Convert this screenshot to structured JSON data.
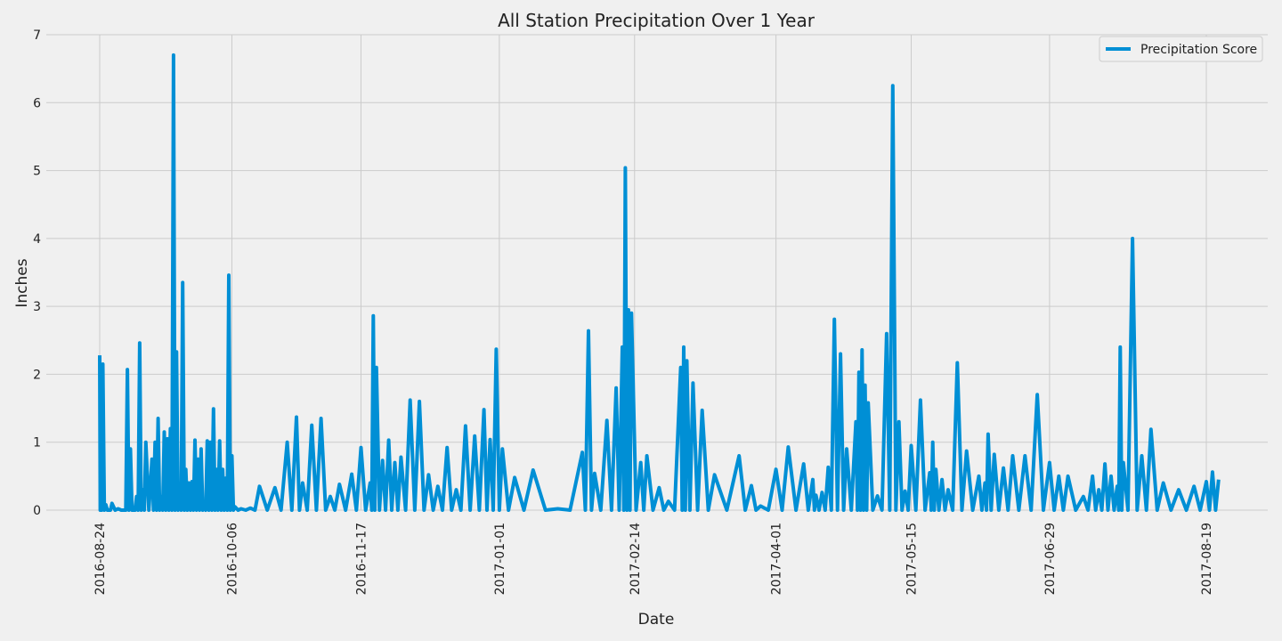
{
  "chart_data": {
    "type": "line",
    "title": "All Station Precipitation Over 1 Year",
    "xlabel": "Date",
    "ylabel": "Inches",
    "x_range": [
      "2016-08-24",
      "2017-08-23"
    ],
    "ylim": [
      0,
      7
    ],
    "grid": true,
    "legend_position": "top-right",
    "x_ticks": [
      "2016-08-24",
      "2016-10-06",
      "2016-11-17",
      "2017-01-01",
      "2017-02-14",
      "2017-04-01",
      "2017-05-15",
      "2017-06-29",
      "2017-08-19"
    ],
    "y_ticks": [
      "0",
      "1",
      "2",
      "3",
      "4",
      "5",
      "6",
      "7"
    ],
    "series": [
      {
        "name": "Precipitation Score",
        "color": "#008fd5",
        "x": [
          "2016-08-24",
          "2016-08-24",
          "2016-08-25",
          "2016-08-26",
          "2016-08-27",
          "2016-08-28",
          "2016-08-30",
          "2016-09-01",
          "2016-09-02",
          "2016-09-03",
          "2016-09-04",
          "2016-09-05",
          "2016-09-06",
          "2016-09-07",
          "2016-09-08",
          "2016-09-10",
          "2016-09-11",
          "2016-09-12",
          "2016-09-13",
          "2016-09-14",
          "2016-09-15",
          "2016-09-16",
          "2016-09-17",
          "2016-09-18",
          "2016-09-19",
          "2016-09-20",
          "2016-09-21",
          "2016-09-22",
          "2016-09-23",
          "2016-09-24",
          "2016-09-25",
          "2016-09-26",
          "2016-09-27",
          "2016-09-28",
          "2016-09-29",
          "2016-09-30",
          "2016-10-01",
          "2016-10-02",
          "2016-10-03",
          "2016-10-04",
          "2016-10-05",
          "2016-10-06",
          "2016-10-07",
          "2016-10-09",
          "2016-10-12",
          "2016-10-15",
          "2016-10-20",
          "2016-10-24",
          "2016-10-27",
          "2016-10-29",
          "2016-11-01",
          "2016-11-04",
          "2016-11-07",
          "2016-11-10",
          "2016-11-14",
          "2016-11-17",
          "2016-11-20",
          "2016-11-21",
          "2016-11-22",
          "2016-11-24",
          "2016-11-26",
          "2016-11-28",
          "2016-11-30",
          "2016-12-03",
          "2016-12-06",
          "2016-12-09",
          "2016-12-12",
          "2016-12-15",
          "2016-12-18",
          "2016-12-21",
          "2016-12-24",
          "2016-12-27",
          "2016-12-29",
          "2016-12-31",
          "2017-01-02",
          "2017-01-06",
          "2017-01-12",
          "2017-01-20",
          "2017-01-28",
          "2017-01-30",
          "2017-02-01",
          "2017-02-05",
          "2017-02-08",
          "2017-02-10",
          "2017-02-11",
          "2017-02-12",
          "2017-02-13",
          "2017-02-16",
          "2017-02-18",
          "2017-02-22",
          "2017-02-25",
          "2017-03-01",
          "2017-03-02",
          "2017-03-03",
          "2017-03-05",
          "2017-03-08",
          "2017-03-12",
          "2017-03-20",
          "2017-03-24",
          "2017-03-27",
          "2017-04-01",
          "2017-04-05",
          "2017-04-10",
          "2017-04-13",
          "2017-04-14",
          "2017-04-16",
          "2017-04-18",
          "2017-04-20",
          "2017-04-22",
          "2017-04-24",
          "2017-04-27",
          "2017-04-28",
          "2017-04-29",
          "2017-04-30",
          "2017-05-01",
          "2017-05-04",
          "2017-05-07",
          "2017-05-09",
          "2017-05-11",
          "2017-05-13",
          "2017-05-15",
          "2017-05-18",
          "2017-05-21",
          "2017-05-22",
          "2017-05-23",
          "2017-05-25",
          "2017-05-27",
          "2017-05-30",
          "2017-06-02",
          "2017-06-06",
          "2017-06-08",
          "2017-06-09",
          "2017-06-11",
          "2017-06-14",
          "2017-06-17",
          "2017-06-21",
          "2017-06-25",
          "2017-06-29",
          "2017-07-02",
          "2017-07-05",
          "2017-07-10",
          "2017-07-13",
          "2017-07-15",
          "2017-07-17",
          "2017-07-19",
          "2017-07-21",
          "2017-07-22",
          "2017-07-23",
          "2017-07-26",
          "2017-07-29",
          "2017-08-01",
          "2017-08-05",
          "2017-08-10",
          "2017-08-15",
          "2017-08-19",
          "2017-08-21",
          "2017-08-23"
        ],
        "y": [
          2.28,
          0.1,
          2.15,
          0.08,
          0.0,
          0.1,
          0.02,
          0.0,
          2.07,
          0.9,
          0.0,
          0.2,
          2.46,
          0.3,
          1.0,
          0.75,
          1.0,
          1.35,
          0.2,
          1.15,
          1.05,
          1.2,
          6.7,
          2.33,
          0.3,
          3.35,
          0.6,
          0.4,
          0.42,
          1.03,
          0.75,
          0.9,
          0.03,
          1.02,
          1.0,
          1.49,
          0.6,
          1.02,
          0.6,
          0.47,
          3.46,
          0.8,
          0.05,
          0.02,
          0.03,
          0.35,
          0.33,
          1.0,
          1.37,
          0.4,
          1.25,
          1.35,
          0.2,
          0.38,
          0.53,
          0.92,
          0.4,
          2.86,
          2.1,
          0.73,
          1.03,
          0.7,
          0.78,
          1.62,
          1.6,
          0.52,
          0.35,
          0.92,
          0.3,
          1.24,
          1.09,
          1.48,
          1.04,
          2.37,
          0.9,
          0.48,
          0.59,
          0.02,
          0.85,
          2.64,
          0.54,
          1.32,
          1.8,
          2.4,
          5.04,
          2.95,
          2.9,
          0.7,
          0.8,
          0.33,
          0.13,
          2.1,
          2.4,
          2.2,
          1.87,
          1.47,
          0.52,
          0.8,
          0.36,
          0.06,
          0.6,
          0.93,
          0.68,
          0.45,
          0.22,
          0.26,
          0.63,
          2.81,
          2.3,
          0.9,
          1.3,
          2.03,
          2.36,
          1.84,
          1.58,
          0.21,
          2.6,
          6.25,
          1.3,
          0.28,
          0.95,
          1.62,
          0.55,
          1.0,
          0.6,
          0.45,
          0.3,
          2.17,
          0.87,
          0.5,
          0.4,
          1.12,
          0.82,
          0.62,
          0.8,
          0.8,
          1.7,
          0.7,
          0.5,
          0.5,
          0.2,
          0.5,
          0.3,
          0.68,
          0.5,
          0.35,
          2.4,
          0.7,
          4.0,
          0.8,
          1.19,
          0.4,
          0.3,
          0.35,
          0.42,
          0.56,
          0.45
        ]
      }
    ]
  }
}
